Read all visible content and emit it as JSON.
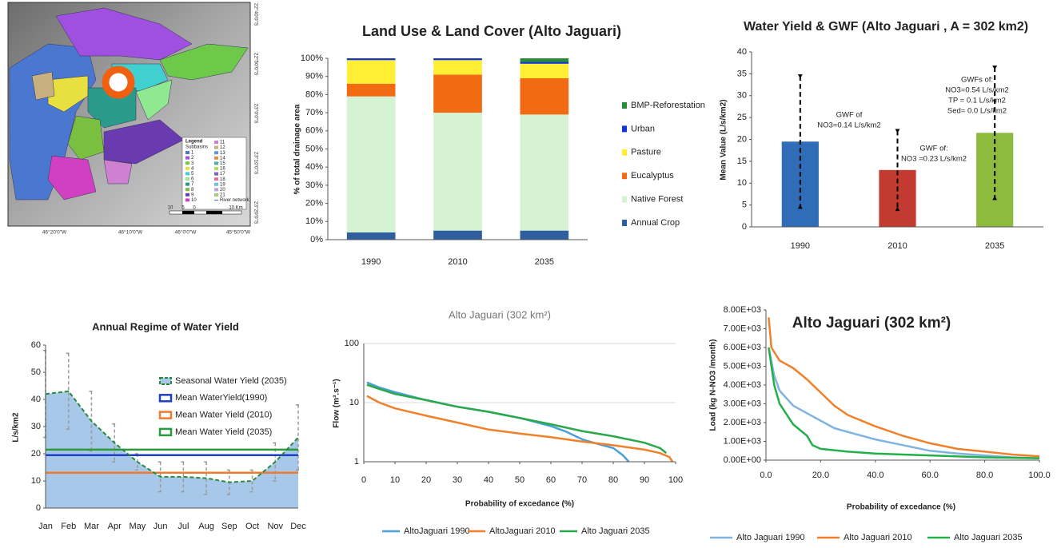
{
  "map": {
    "lat_labels": [
      "22°40'0\"S",
      "22°50'0\"S",
      "23°0'0\"S",
      "23°10'0\"S",
      "23°20'0\"S"
    ],
    "lon_labels": [
      "46°20'0\"W",
      "46°10'0\"W",
      "46°0'0\"W",
      "45°50'0\"W"
    ],
    "legend_title": "Legend",
    "legend_subtitle": "Subbasins",
    "subbasins": [
      1,
      2,
      3,
      4,
      5,
      6,
      7,
      8,
      9,
      10,
      11,
      12,
      13,
      14,
      15,
      16,
      17,
      18,
      19,
      20,
      21
    ],
    "river_network": "River network",
    "scale_labels": [
      "10",
      "5",
      "0",
      "10 Km"
    ]
  },
  "chart_data": [
    {
      "type": "bar",
      "stacked": true,
      "title": "Land Use & Land Cover (Alto Jaguari)",
      "y_label": "% of total drainage area",
      "categories": [
        "1990",
        "2010",
        "2035"
      ],
      "series": [
        {
          "name": "Annual Crop",
          "color": "#2f5f9e",
          "values": [
            4,
            5,
            5
          ]
        },
        {
          "name": "Native Forest",
          "color": "#d5f2d3",
          "values": [
            75,
            65,
            64
          ]
        },
        {
          "name": "Eucalyptus",
          "color": "#f26a12",
          "values": [
            7,
            21,
            20
          ]
        },
        {
          "name": "Pasture",
          "color": "#ffee33",
          "values": [
            13,
            8,
            8
          ]
        },
        {
          "name": "Urban",
          "color": "#1436d8",
          "values": [
            1,
            1,
            1
          ]
        },
        {
          "name": "BMP-Reforestation",
          "color": "#2a8c36",
          "values": [
            0,
            0,
            2
          ]
        }
      ],
      "ylim": [
        0,
        100
      ],
      "yticks": [
        {
          "value": 0,
          "label": "0%"
        },
        {
          "value": 10,
          "label": "10%"
        },
        {
          "value": 20,
          "label": "20%"
        },
        {
          "value": 30,
          "label": "30%"
        },
        {
          "value": 40,
          "label": "40%"
        },
        {
          "value": 50,
          "label": "50%"
        },
        {
          "value": 60,
          "label": "60%"
        },
        {
          "value": 70,
          "label": "70%"
        },
        {
          "value": 80,
          "label": "80%"
        },
        {
          "value": 90,
          "label": "90%"
        },
        {
          "value": 100,
          "label": "100%"
        }
      ],
      "grid": false,
      "legend": "right"
    },
    {
      "type": "bar",
      "title": "Water Yield & GWF (Alto Jaguari , A = 302 km2)",
      "y_label": "Mean Value (L/s/km2)",
      "categories": [
        "1990",
        "2010",
        "2035"
      ],
      "values": [
        19.5,
        13,
        21.5
      ],
      "errors": [
        15,
        9,
        15
      ],
      "colors": [
        "#2f6db8",
        "#c23a30",
        "#8dbb3e"
      ],
      "annotations": [
        [
          "GWF of",
          "NO3=0.14 L/s/km2"
        ],
        [
          "GWF of:",
          "NO3 =0.23 L/s/km2"
        ],
        [
          "GWFs of:",
          "NO3=0.54 L/s/km2",
          "TP = 0.1 L/s/km2",
          "Sed= 0.0 L/s/km2"
        ]
      ],
      "ylim": [
        0,
        40
      ],
      "yticks": [
        0,
        5,
        10,
        15,
        20,
        25,
        30,
        35,
        40
      ],
      "grid": false
    },
    {
      "type": "area",
      "title": "Annual Regime of Water Yield",
      "y_label": "L/s/km2",
      "categories": [
        "Jan",
        "Feb",
        "Mar",
        "Apr",
        "May",
        "Jun",
        "Jul",
        "Aug",
        "Sep",
        "Oct",
        "Nov",
        "Dec"
      ],
      "series": [
        {
          "name": "Seasonal Water Yield (2035)",
          "color": "#2a8a3a",
          "fill": "#a7c8e8",
          "error_color": "#9a9a9a",
          "values": [
            42,
            43,
            32,
            24,
            17,
            11.5,
            11.5,
            11,
            9.5,
            10,
            17,
            26
          ],
          "errors": [
            16,
            14,
            11,
            7,
            3,
            5.5,
            5.5,
            6,
            4.5,
            4,
            7,
            12
          ]
        },
        {
          "name": "Mean WaterYield(1990)",
          "color": "#1f3fc8",
          "value": 19.5
        },
        {
          "name": "Mean Water Yield (2010)",
          "color": "#f07a30",
          "value": 13
        },
        {
          "name": "Mean Water Yield (2035)",
          "color": "#2a9a3a",
          "value": 21.5
        }
      ],
      "ylim": [
        0,
        60
      ],
      "yticks": [
        0,
        10,
        20,
        30,
        40,
        50,
        60
      ],
      "grid": false,
      "legend": "inside"
    },
    {
      "type": "line",
      "title": "Alto Jaguari  (302 km²)",
      "x_label": "Probability of excedance (%)",
      "y_label": "Flow (m³.s⁻¹)",
      "log_y": true,
      "series": [
        {
          "name": "AltoJaguari 1990",
          "color": "#4a9fd8",
          "x": [
            1,
            5,
            10,
            20,
            30,
            40,
            50,
            60,
            65,
            70,
            75,
            80,
            83,
            85
          ],
          "values": [
            22,
            18,
            15,
            11,
            8.5,
            7,
            5.5,
            4,
            3.2,
            2.4,
            2,
            1.7,
            1.3,
            1
          ]
        },
        {
          "name": "AltoJaguari 2010",
          "color": "#f0802a",
          "x": [
            1,
            5,
            10,
            20,
            30,
            40,
            50,
            60,
            70,
            80,
            90,
            95,
            98,
            99
          ],
          "values": [
            13,
            10,
            8,
            6,
            4.6,
            3.5,
            3,
            2.6,
            2.2,
            1.9,
            1.6,
            1.4,
            1.2,
            1
          ]
        },
        {
          "name": "Alto Jaguari 2035",
          "color": "#2aa84a",
          "x": [
            1,
            5,
            10,
            20,
            30,
            40,
            50,
            60,
            70,
            80,
            90,
            95,
            97
          ],
          "values": [
            20,
            17,
            14,
            11,
            8.5,
            7,
            5.5,
            4.3,
            3.3,
            2.7,
            2.1,
            1.7,
            1.4
          ]
        }
      ],
      "xlim": [
        0,
        100
      ],
      "xticks": [
        0,
        10,
        20,
        30,
        40,
        50,
        60,
        70,
        80,
        90,
        100
      ],
      "ylim": [
        1,
        100
      ],
      "yticks": [
        1,
        10,
        100
      ],
      "grid": true,
      "legend": "bottom"
    },
    {
      "type": "line",
      "title": "Alto Jaguari (302 km²)",
      "x_label": "Probability of excedance (%)",
      "y_label": "Load (kg N-NO3 /month)",
      "series": [
        {
          "name": "Alto Jaguari 1990",
          "color": "#7fb3e0",
          "x": [
            1,
            3,
            5,
            10,
            15,
            20,
            25,
            30,
            40,
            50,
            60,
            70,
            80,
            90,
            100
          ],
          "values": [
            6000,
            4500,
            3700,
            2900,
            2500,
            2100,
            1700,
            1500,
            1100,
            800,
            500,
            350,
            250,
            150,
            100
          ]
        },
        {
          "name": "Alto Jaguari 2010",
          "color": "#f0802a",
          "x": [
            1,
            2,
            5,
            10,
            15,
            20,
            25,
            30,
            40,
            50,
            60,
            70,
            80,
            90,
            100
          ],
          "values": [
            7600,
            6000,
            5300,
            4900,
            4300,
            3600,
            2900,
            2400,
            1800,
            1300,
            900,
            600,
            450,
            300,
            200
          ]
        },
        {
          "name": "Alto Jaguari 2035",
          "color": "#22b04a",
          "x": [
            1,
            3,
            5,
            10,
            15,
            17,
            20,
            30,
            40,
            50,
            60,
            80,
            100
          ],
          "values": [
            6000,
            4000,
            3000,
            1900,
            1300,
            800,
            600,
            450,
            350,
            300,
            250,
            150,
            100
          ]
        }
      ],
      "xlim": [
        0,
        100
      ],
      "xticks": [
        {
          "value": 0,
          "label": "0.0"
        },
        {
          "value": 20,
          "label": "20.0"
        },
        {
          "value": 40,
          "label": "40.0"
        },
        {
          "value": 60,
          "label": "60.0"
        },
        {
          "value": 80,
          "label": "80.0"
        },
        {
          "value": 100,
          "label": "100.0"
        }
      ],
      "ylim": [
        0,
        8000
      ],
      "yticks": [
        {
          "value": 0,
          "label": "0.00E+00"
        },
        {
          "value": 1000,
          "label": "1.00E+03"
        },
        {
          "value": 2000,
          "label": "2.00E+03"
        },
        {
          "value": 3000,
          "label": "3.00E+03"
        },
        {
          "value": 4000,
          "label": "4.00E+03"
        },
        {
          "value": 5000,
          "label": "5.00E+03"
        },
        {
          "value": 6000,
          "label": "6.00E+03"
        },
        {
          "value": 7000,
          "label": "7.00E+03"
        },
        {
          "value": 8000,
          "label": "8.00E+03"
        }
      ],
      "grid": false,
      "legend": "bottom"
    }
  ]
}
